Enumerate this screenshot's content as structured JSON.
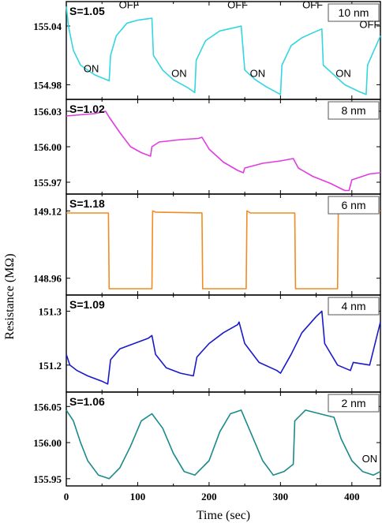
{
  "chart_data": {
    "type": "line",
    "xlabel": "Time (sec)",
    "ylabel": "Resistance (MΩ)",
    "xlim": [
      0,
      440
    ],
    "x_ticks": [
      0,
      100,
      200,
      300,
      400
    ],
    "panels": [
      {
        "tag": "10 nm",
        "s_label": "S=1.05",
        "color": "#33d6e0",
        "ylim": [
          154.965,
          155.065
        ],
        "y_ticks": [
          155.04,
          154.98
        ],
        "y_tick_labels": [
          "155.04",
          "154.98"
        ],
        "annotations": [
          {
            "text": "ON",
            "x": 35,
            "y": 154.993
          },
          {
            "text": "OFF",
            "x": 88,
            "y": 155.058
          },
          {
            "text": "ON",
            "x": 158,
            "y": 154.988
          },
          {
            "text": "OFF",
            "x": 240,
            "y": 155.058
          },
          {
            "text": "ON",
            "x": 268,
            "y": 154.988
          },
          {
            "text": "OFF",
            "x": 345,
            "y": 155.058
          },
          {
            "text": "ON",
            "x": 388,
            "y": 154.988
          },
          {
            "text": "OFF",
            "x": 425,
            "y": 155.038
          }
        ],
        "series": [
          {
            "x": [
              0,
              3,
              10,
              20,
              40,
              60,
              62,
              70,
              85,
              100,
              120,
              122,
              135,
              150,
              170,
              180,
              182,
              195,
              215,
              240,
              245,
              250,
              265,
              280,
              300,
              302,
              315,
              330,
              345,
              358,
              360,
              375,
              390,
              410,
              420,
              422,
              440
            ],
            "y": [
              155.06,
              155.04,
              155.015,
              155.0,
              154.99,
              154.984,
              155.01,
              155.03,
              155.043,
              155.046,
              155.048,
              155.01,
              154.995,
              154.985,
              154.977,
              154.972,
              155.005,
              155.025,
              155.035,
              155.039,
              155.04,
              154.995,
              154.985,
              154.978,
              154.97,
              155.0,
              155.02,
              155.028,
              155.033,
              155.037,
              155.0,
              154.99,
              154.98,
              154.973,
              154.97,
              155.0,
              155.03
            ]
          }
        ]
      },
      {
        "tag": "8 nm",
        "s_label": "S=1.02",
        "color": "#e03ce0",
        "ylim": [
          155.96,
          156.04
        ],
        "y_ticks": [
          156.03,
          156.0,
          155.97
        ],
        "y_tick_labels": [
          "156.03",
          "156.00",
          "155.97"
        ],
        "annotations": [],
        "series": [
          {
            "x": [
              0,
              20,
              40,
              55,
              60,
              75,
              90,
              105,
              118,
              120,
              130,
              160,
              185,
              190,
              200,
              220,
              240,
              248,
              250,
              275,
              300,
              318,
              325,
              345,
              370,
              390,
              396,
              400,
              425,
              440
            ],
            "y": [
              156.026,
              156.027,
              156.028,
              156.03,
              156.025,
              156.012,
              156.0,
              155.995,
              155.992,
              156.0,
              156.004,
              156.006,
              156.007,
              156.008,
              155.998,
              155.987,
              155.98,
              155.978,
              155.982,
              155.986,
              155.988,
              155.99,
              155.982,
              155.975,
              155.969,
              155.963,
              155.963,
              155.972,
              155.977,
              155.978
            ]
          }
        ]
      },
      {
        "tag": "6 nm",
        "s_label": "S=1.18",
        "color": "#f28b20",
        "ylim": [
          148.92,
          149.16
        ],
        "y_ticks": [
          149.12,
          148.96
        ],
        "y_tick_labels": [
          "149.12",
          "148.96"
        ],
        "annotations": [],
        "series": [
          {
            "x": [
              0,
              59,
              60,
              120,
              121,
              125,
              190,
              191,
              252,
              253,
              258,
              320,
              321,
              380,
              381,
              440
            ],
            "y": [
              149.115,
              149.115,
              148.935,
              148.935,
              149.12,
              149.117,
              149.115,
              148.935,
              148.935,
              149.12,
              149.115,
              149.115,
              148.935,
              148.935,
              149.12,
              149.12
            ]
          }
        ]
      },
      {
        "tag": "4 nm",
        "s_label": "S=1.09",
        "color": "#1a1acc",
        "ylim": [
          151.15,
          151.33
        ],
        "y_ticks": [
          151.3,
          151.2
        ],
        "y_tick_labels": [
          "151.3",
          "151.2"
        ],
        "annotations": [],
        "series": [
          {
            "x": [
              0,
              5,
              15,
              30,
              50,
              58,
              62,
              75,
              95,
              115,
              120,
              125,
              140,
              160,
              178,
              183,
              200,
              220,
              240,
              242,
              250,
              270,
              295,
              300,
              315,
              330,
              350,
              358,
              362,
              380,
              398,
              402,
              425,
              440
            ],
            "y": [
              151.22,
              151.2,
              151.19,
              151.18,
              151.17,
              151.165,
              151.21,
              151.23,
              151.24,
              151.25,
              151.255,
              151.22,
              151.195,
              151.185,
              151.18,
              151.215,
              151.24,
              151.26,
              151.275,
              151.28,
              151.24,
              151.205,
              151.19,
              151.185,
              151.22,
              151.26,
              151.29,
              151.3,
              151.24,
              151.2,
              151.19,
              151.205,
              151.2,
              151.28
            ]
          }
        ]
      },
      {
        "tag": "2 nm",
        "s_label": "S=1.06",
        "color": "#1a8a8a",
        "ylim": [
          155.94,
          156.07
        ],
        "y_ticks": [
          156.05,
          156.0,
          155.95
        ],
        "y_tick_labels": [
          "156.05",
          "156.00",
          "155.95"
        ],
        "annotations": [
          {
            "text": "ON",
            "x": 425,
            "y": 155.973
          }
        ],
        "series": [
          {
            "x": [
              0,
              10,
              20,
              30,
              45,
              60,
              75,
              90,
              105,
              120,
              135,
              150,
              165,
              180,
              200,
              215,
              230,
              245,
              260,
              275,
              290,
              305,
              318,
              320,
              335,
              355,
              375,
              385,
              400,
              415,
              430,
              440
            ],
            "y": [
              156.045,
              156.03,
              156.0,
              155.975,
              155.955,
              155.95,
              155.965,
              155.995,
              156.03,
              156.04,
              156.02,
              155.985,
              155.96,
              155.955,
              155.975,
              156.015,
              156.04,
              156.045,
              156.01,
              155.975,
              155.955,
              155.96,
              155.97,
              156.03,
              156.045,
              156.04,
              156.035,
              156.005,
              155.975,
              155.96,
              155.955,
              155.96
            ]
          }
        ]
      }
    ]
  }
}
